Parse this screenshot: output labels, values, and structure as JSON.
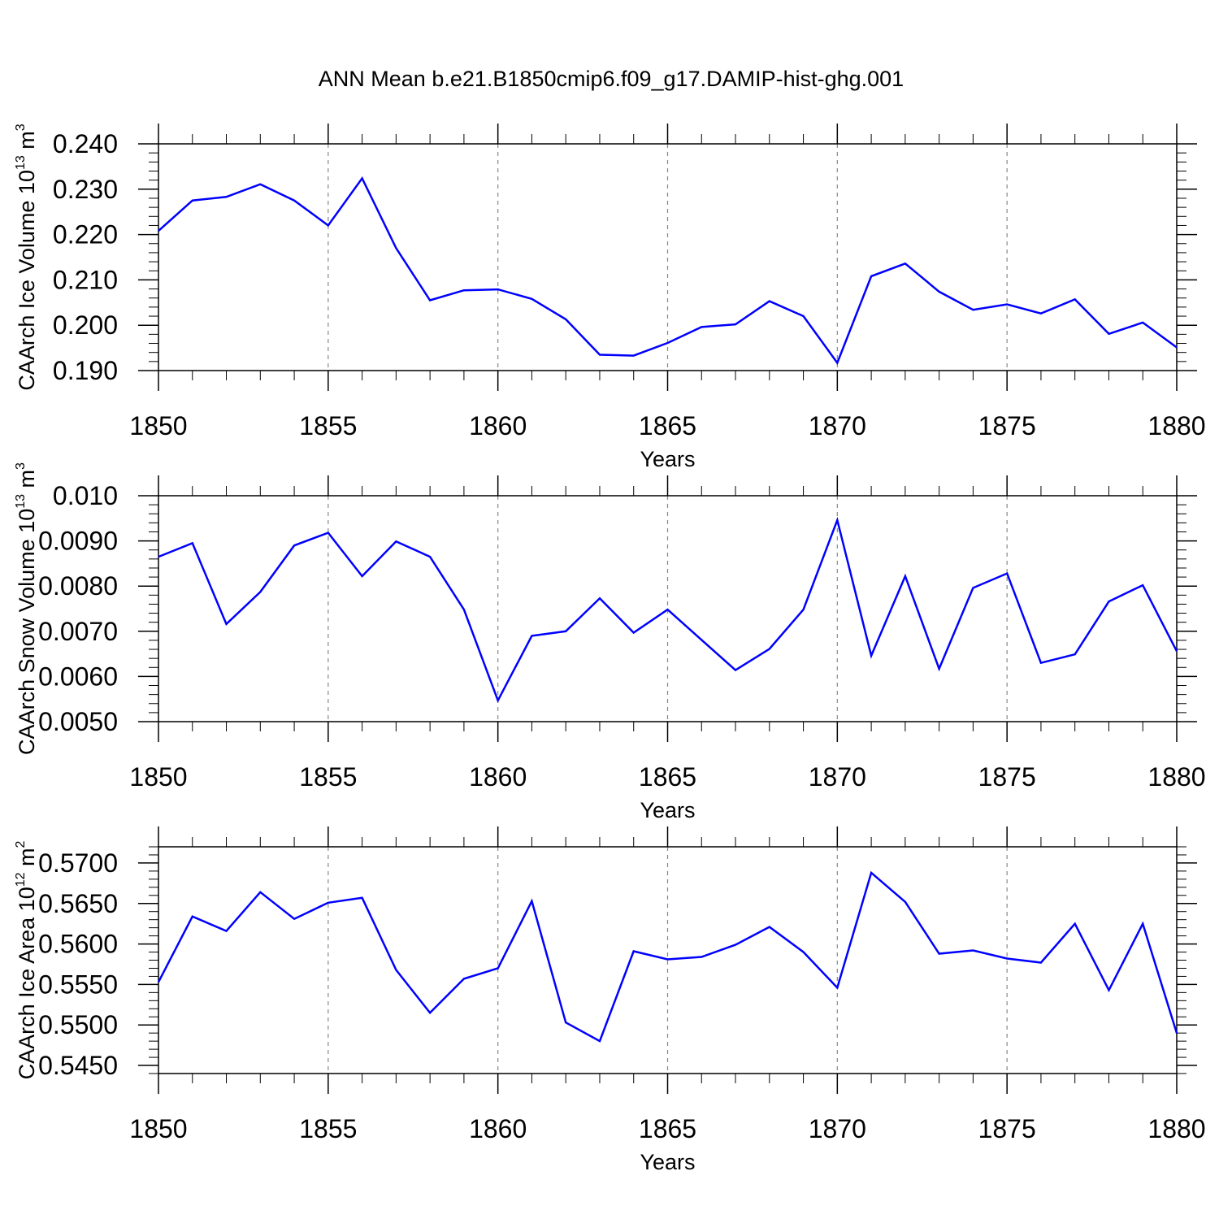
{
  "title": "ANN Mean b.e21.B1850cmip6.f09_g17.DAMIP-hist-ghg.001",
  "colors": {
    "line": "#0000ff",
    "axis": "#000000",
    "grid": "#888888"
  },
  "chart_data": [
    {
      "type": "line",
      "xlabel": "Years",
      "ylabel": {
        "text": "CAArch Ice Volume 10",
        "exp": "13",
        "unit": " m",
        "unit_exp": "3"
      },
      "xlim": [
        1850,
        1880
      ],
      "xticks": [
        1850,
        1855,
        1860,
        1865,
        1870,
        1875,
        1880
      ],
      "ylim": [
        0.19,
        0.24
      ],
      "yticks": [
        "0.190",
        "0.200",
        "0.210",
        "0.220",
        "0.230",
        "0.240"
      ],
      "ytick_values": [
        0.19,
        0.2,
        0.21,
        0.22,
        0.23,
        0.24
      ],
      "grid": "dashed vertical at major x ticks",
      "x": [
        1850,
        1851,
        1852,
        1853,
        1854,
        1855,
        1856,
        1857,
        1858,
        1859,
        1860,
        1861,
        1862,
        1863,
        1864,
        1865,
        1866,
        1867,
        1868,
        1869,
        1870,
        1871,
        1872,
        1873,
        1874,
        1875,
        1876,
        1877,
        1878,
        1879,
        1880
      ],
      "values": [
        0.2208,
        0.2275,
        0.2283,
        0.2311,
        0.2275,
        0.222,
        0.2324,
        0.217,
        0.2055,
        0.2077,
        0.2079,
        0.2058,
        0.2013,
        0.1935,
        0.1933,
        0.1961,
        0.1996,
        0.2002,
        0.2053,
        0.202,
        0.1917,
        0.2108,
        0.2136,
        0.2074,
        0.2034,
        0.2046,
        0.2026,
        0.2057,
        0.1981,
        0.2006,
        0.1951
      ]
    },
    {
      "type": "line",
      "xlabel": "Years",
      "ylabel": {
        "text": "CAArch Snow Volume 10",
        "exp": "13",
        "unit": " m",
        "unit_exp": "3"
      },
      "xlim": [
        1850,
        1880
      ],
      "xticks": [
        1850,
        1855,
        1860,
        1865,
        1870,
        1875,
        1880
      ],
      "ylim": [
        0.005,
        0.01
      ],
      "yticks": [
        "0.0050",
        "0.0060",
        "0.0070",
        "0.0080",
        "0.0090",
        "0.010"
      ],
      "ytick_values": [
        0.005,
        0.006,
        0.007,
        0.008,
        0.009,
        0.01
      ],
      "grid": "dashed vertical at major x ticks",
      "x": [
        1850,
        1851,
        1852,
        1853,
        1854,
        1855,
        1856,
        1857,
        1858,
        1859,
        1860,
        1861,
        1862,
        1863,
        1864,
        1865,
        1866,
        1867,
        1868,
        1869,
        1870,
        1871,
        1872,
        1873,
        1874,
        1875,
        1876,
        1877,
        1878,
        1879,
        1880
      ],
      "values": [
        0.00865,
        0.00895,
        0.00716,
        0.00787,
        0.0089,
        0.00918,
        0.00822,
        0.00899,
        0.00865,
        0.00748,
        0.00547,
        0.0069,
        0.007,
        0.00773,
        0.00697,
        0.00748,
        0.00681,
        0.00614,
        0.00661,
        0.00748,
        0.00946,
        0.00646,
        0.00822,
        0.00617,
        0.00796,
        0.00828,
        0.0063,
        0.00649,
        0.00766,
        0.00802,
        0.00656
      ]
    },
    {
      "type": "line",
      "xlabel": "Years",
      "ylabel": {
        "text": "CAArch Ice Area 10",
        "exp": "12",
        "unit": " m",
        "unit_exp": "2"
      },
      "xlim": [
        1850,
        1880
      ],
      "xticks": [
        1850,
        1855,
        1860,
        1865,
        1870,
        1875,
        1880
      ],
      "ylim": [
        0.544,
        0.572
      ],
      "yticks": [
        "0.5450",
        "0.5500",
        "0.5550",
        "0.5600",
        "0.5650",
        "0.5700"
      ],
      "ytick_values": [
        0.545,
        0.55,
        0.555,
        0.56,
        0.565,
        0.57
      ],
      "grid": "dashed vertical at major x ticks",
      "x": [
        1850,
        1851,
        1852,
        1853,
        1854,
        1855,
        1856,
        1857,
        1858,
        1859,
        1860,
        1861,
        1862,
        1863,
        1864,
        1865,
        1866,
        1867,
        1868,
        1869,
        1870,
        1871,
        1872,
        1873,
        1874,
        1875,
        1876,
        1877,
        1878,
        1879,
        1880
      ],
      "values": [
        0.5553,
        0.5634,
        0.5616,
        0.5664,
        0.5631,
        0.5651,
        0.5657,
        0.5568,
        0.5515,
        0.5557,
        0.557,
        0.5653,
        0.5503,
        0.548,
        0.5591,
        0.5581,
        0.5584,
        0.5599,
        0.5621,
        0.559,
        0.5546,
        0.5688,
        0.5652,
        0.5588,
        0.5592,
        0.5582,
        0.5577,
        0.5625,
        0.5543,
        0.5625,
        0.549
      ]
    }
  ]
}
